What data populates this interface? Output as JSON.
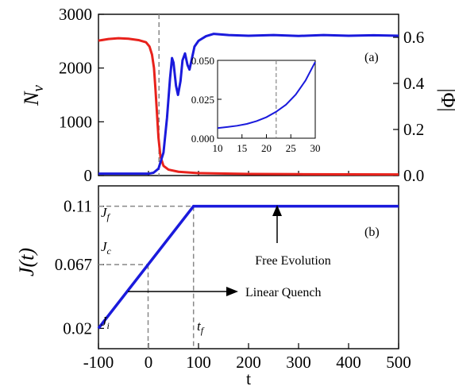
{
  "chart_data": [
    {
      "panel": "(a)",
      "type": "line",
      "ylabel": "N_v",
      "ylabel_right": "|Φ|",
      "ylim": [
        0,
        3000
      ],
      "ylim_right": [
        0,
        0.7
      ],
      "yticks": [
        "0",
        "1000",
        "2000",
        "3000"
      ],
      "yticks_right": [
        "0.0",
        "0.2",
        "0.4",
        "0.6"
      ],
      "xlim": [
        -100,
        500
      ],
      "vline_x": 21,
      "series": [
        {
          "axis": "left",
          "color": "#e8221c",
          "points": [
            [
              -100,
              2510
            ],
            [
              -80,
              2540
            ],
            [
              -60,
              2555
            ],
            [
              -40,
              2545
            ],
            [
              -20,
              2520
            ],
            [
              -5,
              2480
            ],
            [
              2,
              2400
            ],
            [
              7,
              2250
            ],
            [
              11,
              2000
            ],
            [
              14,
              1600
            ],
            [
              17,
              1150
            ],
            [
              20,
              700
            ],
            [
              24,
              350
            ],
            [
              30,
              180
            ],
            [
              40,
              110
            ],
            [
              60,
              70
            ],
            [
              100,
              45
            ],
            [
              200,
              30
            ],
            [
              300,
              25
            ],
            [
              400,
              22
            ],
            [
              500,
              20
            ]
          ]
        },
        {
          "axis": "right",
          "color": "#1a1adc",
          "points": [
            [
              -100,
              0.008
            ],
            [
              -40,
              0.008
            ],
            [
              0,
              0.008
            ],
            [
              10,
              0.012
            ],
            [
              20,
              0.03
            ],
            [
              30,
              0.1
            ],
            [
              37,
              0.25
            ],
            [
              43,
              0.42
            ],
            [
              47,
              0.51
            ],
            [
              50,
              0.49
            ],
            [
              55,
              0.39
            ],
            [
              59,
              0.35
            ],
            [
              64,
              0.41
            ],
            [
              68,
              0.5
            ],
            [
              73,
              0.53
            ],
            [
              78,
              0.48
            ],
            [
              82,
              0.46
            ],
            [
              86,
              0.5
            ],
            [
              92,
              0.56
            ],
            [
              100,
              0.585
            ],
            [
              115,
              0.605
            ],
            [
              130,
              0.615
            ],
            [
              160,
              0.61
            ],
            [
              200,
              0.607
            ],
            [
              250,
              0.61
            ],
            [
              300,
              0.606
            ],
            [
              350,
              0.61
            ],
            [
              400,
              0.607
            ],
            [
              450,
              0.609
            ],
            [
              500,
              0.607
            ]
          ]
        }
      ],
      "inset": {
        "xlim": [
          10,
          30
        ],
        "ylim": [
          0,
          0.05
        ],
        "xticks": [
          "10",
          "15",
          "20",
          "25",
          "30"
        ],
        "yticks": [
          "0.000",
          "0.025",
          "0.050"
        ],
        "vline_x": 22,
        "color": "#1a1adc",
        "points": [
          [
            10,
            0.0065
          ],
          [
            12,
            0.0072
          ],
          [
            14,
            0.008
          ],
          [
            16,
            0.0092
          ],
          [
            18,
            0.011
          ],
          [
            20,
            0.0135
          ],
          [
            22,
            0.017
          ],
          [
            24,
            0.0215
          ],
          [
            26,
            0.028
          ],
          [
            28,
            0.037
          ],
          [
            30,
            0.049
          ]
        ]
      }
    },
    {
      "panel": "(b)",
      "type": "line",
      "ylabel": "J(t)",
      "xlabel": "t",
      "xlim": [
        -100,
        500
      ],
      "ylim": [
        0.005,
        0.125
      ],
      "yticks": [
        "0.02",
        "0.067",
        "0.11"
      ],
      "xticks": [
        "-100",
        "0",
        "100",
        "200",
        "300",
        "400",
        "500"
      ],
      "series": [
        {
          "color": "#1a1adc",
          "points": [
            [
              -100,
              0.02
            ],
            [
              90,
              0.11
            ],
            [
              500,
              0.11
            ]
          ]
        }
      ],
      "level_labels": {
        "j_i": "J",
        "j_i_sub": "i",
        "j_c": "J",
        "j_c_sub": "c",
        "j_f": "J",
        "j_f_sub": "f",
        "t_f": "t",
        "t_f_sub": "f"
      },
      "annotations": {
        "free": "Free Evolution",
        "linear": "Linear Quench"
      }
    }
  ]
}
